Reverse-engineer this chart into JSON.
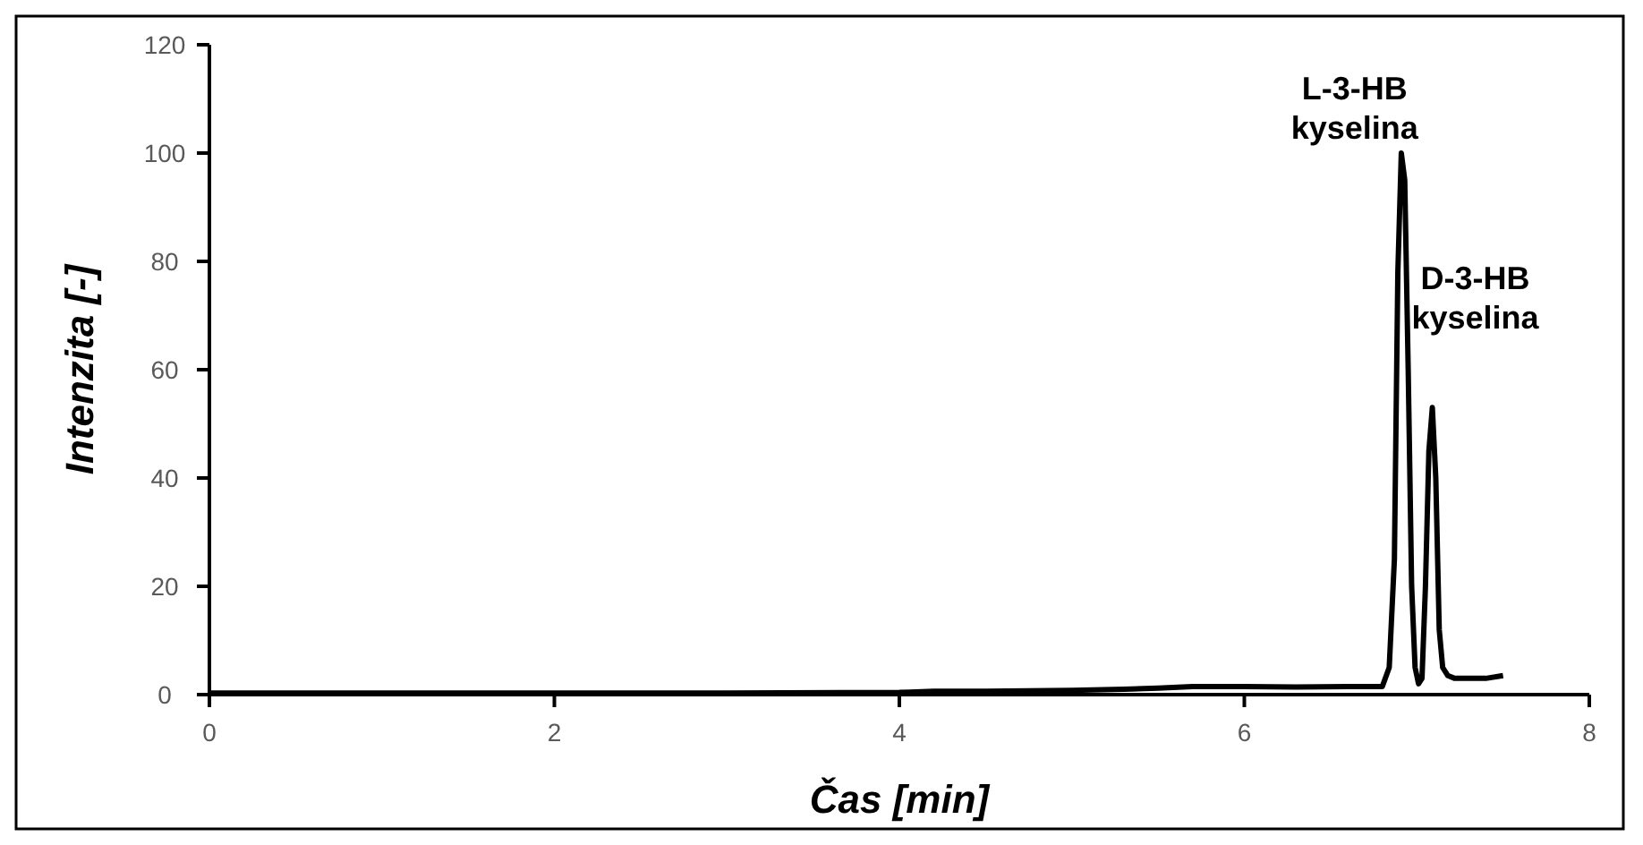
{
  "chart_data": {
    "type": "line",
    "xlabel": "Čas [min]",
    "ylabel": "Intenzita [-]",
    "xlim": [
      0,
      8
    ],
    "ylim": [
      0,
      120
    ],
    "xticks": [
      0,
      2,
      4,
      6,
      8
    ],
    "yticks": [
      0,
      20,
      40,
      60,
      80,
      100,
      120
    ],
    "grid": false,
    "marker": "none",
    "line_style": "solid",
    "series": [
      {
        "color": "#000000",
        "x": [
          0,
          1,
          2,
          3,
          4,
          4.2,
          4.5,
          5,
          5.3,
          5.5,
          5.7,
          6,
          6.3,
          6.6,
          6.8,
          6.84,
          6.87,
          6.89,
          6.91,
          6.93,
          6.95,
          6.97,
          6.99,
          7.01,
          7.03,
          7.05,
          7.07,
          7.09,
          7.11,
          7.13,
          7.15,
          7.18,
          7.22,
          7.3,
          7.4,
          7.5
        ],
        "values": [
          0.3,
          0.3,
          0.3,
          0.3,
          0.4,
          0.6,
          0.6,
          0.8,
          1,
          1.2,
          1.5,
          1.5,
          1.4,
          1.5,
          1.5,
          5,
          25,
          78,
          100,
          95,
          60,
          20,
          5,
          2,
          3,
          20,
          45,
          53,
          40,
          12,
          5,
          3.5,
          3,
          3,
          3,
          3.5
        ]
      }
    ],
    "annotations": [
      {
        "text": "L-3-HB\nkyselina",
        "x": 6.93,
        "y": 100
      },
      {
        "text": "D-3-HB\nkyselina",
        "x": 7.11,
        "y": 53
      }
    ]
  }
}
